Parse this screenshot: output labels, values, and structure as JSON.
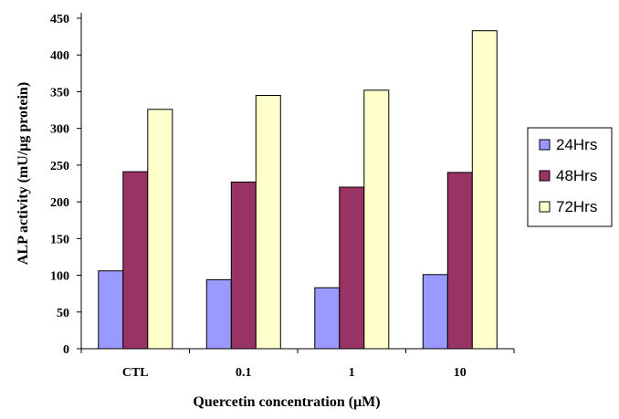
{
  "chart_data": {
    "type": "bar",
    "categories": [
      "CTL",
      "0.1",
      "1",
      "10"
    ],
    "series": [
      {
        "name": "24Hrs",
        "values": [
          106,
          94,
          83,
          101
        ],
        "color": "#9999FF"
      },
      {
        "name": "48Hrs",
        "values": [
          241,
          227,
          220,
          240
        ],
        "color": "#993366"
      },
      {
        "name": "72Hrs",
        "values": [
          326,
          345,
          352,
          433
        ],
        "color": "#FFFFCC"
      }
    ],
    "xlabel": "Quercetin concentration (μM)",
    "ylabel": "ALP activity (mU/μg protein)",
    "ylim": [
      0,
      450
    ],
    "yticks": [
      0,
      50,
      100,
      150,
      200,
      250,
      300,
      350,
      400,
      450
    ],
    "grid": false,
    "legend_position": "right"
  }
}
